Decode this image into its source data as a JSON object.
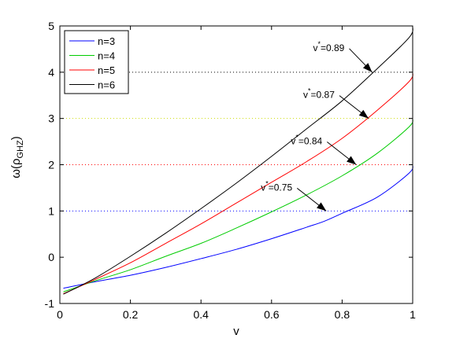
{
  "chart_data": {
    "type": "line",
    "xlabel": "v",
    "ylabel_main": "ω(ρ",
    "ylabel_sub": "GHZ",
    "ylabel_close": ")",
    "xlim": [
      0,
      1
    ],
    "ylim": [
      -1,
      5
    ],
    "xticks": [
      0,
      0.2,
      0.4,
      0.6,
      0.8,
      1
    ],
    "xtick_labels": [
      "0",
      "0.2",
      "0.4",
      "0.6",
      "0.8",
      "1"
    ],
    "yticks": [
      -1,
      0,
      1,
      2,
      3,
      4,
      5
    ],
    "ytick_labels": [
      "-1",
      "0",
      "1",
      "2",
      "3",
      "4",
      "5"
    ],
    "grid": false,
    "legend_position": "top-left",
    "series": [
      {
        "name": "n=3",
        "color": "#0000ff",
        "x": [
          0.01,
          0.1,
          0.2,
          0.3,
          0.4,
          0.5,
          0.6,
          0.7,
          0.75,
          0.8,
          0.9,
          0.99,
          1.0
        ],
        "y": [
          -0.67,
          -0.53,
          -0.39,
          -0.22,
          -0.03,
          0.17,
          0.4,
          0.65,
          0.78,
          0.95,
          1.3,
          1.82,
          2.0
        ]
      },
      {
        "name": "n=4",
        "color": "#00cc00",
        "x": [
          0.01,
          0.1,
          0.2,
          0.3,
          0.4,
          0.5,
          0.6,
          0.7,
          0.8,
          0.9,
          0.99,
          1.0
        ],
        "y": [
          -0.75,
          -0.51,
          -0.27,
          0.02,
          0.3,
          0.63,
          0.98,
          1.35,
          1.76,
          2.25,
          2.82,
          3.0
        ]
      },
      {
        "name": "n=5",
        "color": "#ff0000",
        "x": [
          0.01,
          0.1,
          0.2,
          0.3,
          0.4,
          0.5,
          0.6,
          0.7,
          0.8,
          0.9,
          0.99,
          1.0
        ],
        "y": [
          -0.79,
          -0.48,
          -0.12,
          0.3,
          0.72,
          1.17,
          1.62,
          2.07,
          2.57,
          3.18,
          3.8,
          4.0
        ]
      },
      {
        "name": "n=6",
        "color": "#000000",
        "x": [
          0.01,
          0.1,
          0.2,
          0.3,
          0.4,
          0.5,
          0.6,
          0.7,
          0.8,
          0.9,
          0.99,
          1.0
        ],
        "y": [
          -0.8,
          -0.45,
          0.02,
          0.52,
          1.05,
          1.6,
          2.18,
          2.78,
          3.38,
          4.08,
          4.75,
          5.0
        ]
      }
    ],
    "hlines": [
      {
        "y": 1,
        "color": "#0000ff",
        "style": "dotted"
      },
      {
        "y": 2,
        "color": "#ff0000",
        "style": "dotted"
      },
      {
        "y": 3,
        "color": "#ccdd00",
        "style": "dotted"
      },
      {
        "y": 4,
        "color": "#000000",
        "style": "dotted"
      }
    ],
    "annotations": [
      {
        "prefix": "v",
        "superscript": "*",
        "value_text": "=0.75",
        "target_x": 0.755,
        "target_y": 1.0
      },
      {
        "prefix": "v",
        "superscript": "*",
        "value_text": "=0.84",
        "target_x": 0.84,
        "target_y": 2.0
      },
      {
        "prefix": "v",
        "superscript": "*",
        "value_text": "=0.87",
        "target_x": 0.875,
        "target_y": 3.0
      },
      {
        "prefix": "v",
        "superscript": "*",
        "value_text": "=0.89",
        "target_x": 0.885,
        "target_y": 4.0
      }
    ]
  }
}
